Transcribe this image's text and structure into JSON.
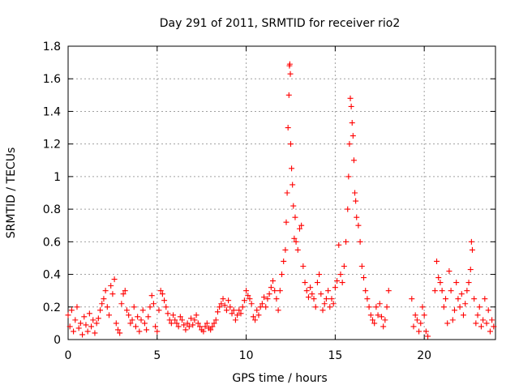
{
  "chart_data": {
    "type": "scatter",
    "title": "Day 291 of 2011, SRMTID for receiver rio2",
    "xlabel": "GPS time / hours",
    "ylabel": "SRMTID / TECUs",
    "xlim": [
      0,
      24
    ],
    "ylim": [
      0,
      1.8
    ],
    "x_ticks": [
      0,
      5,
      10,
      15,
      20
    ],
    "x_tick_labels": [
      "0",
      "5",
      "10",
      "15",
      "20"
    ],
    "y_ticks": [
      0,
      0.2,
      0.4,
      0.6,
      0.8,
      1.0,
      1.2,
      1.4,
      1.6,
      1.8
    ],
    "y_tick_labels": [
      "0",
      "0.2",
      "0.4",
      "0.6",
      "0.8",
      "1",
      "1.2",
      "1.4",
      "1.6",
      "1.8"
    ],
    "grid": true,
    "marker": "plus",
    "color": "#ff0000",
    "series": [
      {
        "name": "rio2",
        "points": [
          [
            0.0,
            0.15
          ],
          [
            0.1,
            0.08
          ],
          [
            0.2,
            0.18
          ],
          [
            0.3,
            0.05
          ],
          [
            0.4,
            0.12
          ],
          [
            0.5,
            0.2
          ],
          [
            0.6,
            0.07
          ],
          [
            0.7,
            0.1
          ],
          [
            0.8,
            0.03
          ],
          [
            0.9,
            0.14
          ],
          [
            1.0,
            0.09
          ],
          [
            1.1,
            0.05
          ],
          [
            1.2,
            0.16
          ],
          [
            1.3,
            0.08
          ],
          [
            1.4,
            0.12
          ],
          [
            1.5,
            0.04
          ],
          [
            1.6,
            0.1
          ],
          [
            1.7,
            0.13
          ],
          [
            1.8,
            0.18
          ],
          [
            1.9,
            0.22
          ],
          [
            2.0,
            0.25
          ],
          [
            2.1,
            0.3
          ],
          [
            2.2,
            0.2
          ],
          [
            2.3,
            0.15
          ],
          [
            2.4,
            0.33
          ],
          [
            2.5,
            0.28
          ],
          [
            2.6,
            0.37
          ],
          [
            2.7,
            0.1
          ],
          [
            2.8,
            0.06
          ],
          [
            2.9,
            0.04
          ],
          [
            3.0,
            0.22
          ],
          [
            3.1,
            0.28
          ],
          [
            3.2,
            0.3
          ],
          [
            3.3,
            0.18
          ],
          [
            3.4,
            0.15
          ],
          [
            3.5,
            0.1
          ],
          [
            3.6,
            0.12
          ],
          [
            3.7,
            0.2
          ],
          [
            3.8,
            0.08
          ],
          [
            3.9,
            0.14
          ],
          [
            4.0,
            0.05
          ],
          [
            4.1,
            0.12
          ],
          [
            4.2,
            0.18
          ],
          [
            4.3,
            0.1
          ],
          [
            4.4,
            0.06
          ],
          [
            4.5,
            0.14
          ],
          [
            4.6,
            0.2
          ],
          [
            4.7,
            0.27
          ],
          [
            4.8,
            0.22
          ],
          [
            4.9,
            0.08
          ],
          [
            5.0,
            0.05
          ],
          [
            5.1,
            0.18
          ],
          [
            5.2,
            0.3
          ],
          [
            5.3,
            0.28
          ],
          [
            5.4,
            0.24
          ],
          [
            5.5,
            0.2
          ],
          [
            5.6,
            0.16
          ],
          [
            5.7,
            0.12
          ],
          [
            5.8,
            0.1
          ],
          [
            5.9,
            0.15
          ],
          [
            6.0,
            0.12
          ],
          [
            6.1,
            0.1
          ],
          [
            6.2,
            0.08
          ],
          [
            6.3,
            0.14
          ],
          [
            6.4,
            0.12
          ],
          [
            6.5,
            0.09
          ],
          [
            6.6,
            0.06
          ],
          [
            6.7,
            0.1
          ],
          [
            6.8,
            0.08
          ],
          [
            6.9,
            0.13
          ],
          [
            7.0,
            0.09
          ],
          [
            7.1,
            0.12
          ],
          [
            7.2,
            0.15
          ],
          [
            7.3,
            0.1
          ],
          [
            7.4,
            0.08
          ],
          [
            7.5,
            0.06
          ],
          [
            7.6,
            0.05
          ],
          [
            7.7,
            0.08
          ],
          [
            7.8,
            0.1
          ],
          [
            7.9,
            0.07
          ],
          [
            8.0,
            0.06
          ],
          [
            8.1,
            0.08
          ],
          [
            8.2,
            0.1
          ],
          [
            8.3,
            0.12
          ],
          [
            8.4,
            0.17
          ],
          [
            8.5,
            0.2
          ],
          [
            8.6,
            0.22
          ],
          [
            8.7,
            0.25
          ],
          [
            8.8,
            0.21
          ],
          [
            8.9,
            0.18
          ],
          [
            9.0,
            0.24
          ],
          [
            9.1,
            0.2
          ],
          [
            9.2,
            0.16
          ],
          [
            9.3,
            0.18
          ],
          [
            9.4,
            0.12
          ],
          [
            9.5,
            0.15
          ],
          [
            9.6,
            0.18
          ],
          [
            9.7,
            0.16
          ],
          [
            9.8,
            0.2
          ],
          [
            9.9,
            0.24
          ],
          [
            10.0,
            0.3
          ],
          [
            10.1,
            0.27
          ],
          [
            10.2,
            0.25
          ],
          [
            10.3,
            0.22
          ],
          [
            10.4,
            0.14
          ],
          [
            10.5,
            0.12
          ],
          [
            10.6,
            0.18
          ],
          [
            10.7,
            0.15
          ],
          [
            10.8,
            0.2
          ],
          [
            10.9,
            0.22
          ],
          [
            11.0,
            0.26
          ],
          [
            11.1,
            0.2
          ],
          [
            11.2,
            0.25
          ],
          [
            11.3,
            0.28
          ],
          [
            11.4,
            0.32
          ],
          [
            11.5,
            0.36
          ],
          [
            11.6,
            0.3
          ],
          [
            11.7,
            0.25
          ],
          [
            11.8,
            0.18
          ],
          [
            11.9,
            0.3
          ],
          [
            12.0,
            0.4
          ],
          [
            12.1,
            0.48
          ],
          [
            12.2,
            0.55
          ],
          [
            12.25,
            0.72
          ],
          [
            12.3,
            0.9
          ],
          [
            12.35,
            1.3
          ],
          [
            12.4,
            1.5
          ],
          [
            12.43,
            1.68
          ],
          [
            12.45,
            1.69
          ],
          [
            12.48,
            1.63
          ],
          [
            12.5,
            1.2
          ],
          [
            12.55,
            1.05
          ],
          [
            12.6,
            0.95
          ],
          [
            12.65,
            0.82
          ],
          [
            12.7,
            0.62
          ],
          [
            12.75,
            0.75
          ],
          [
            12.8,
            0.6
          ],
          [
            12.9,
            0.55
          ],
          [
            13.0,
            0.68
          ],
          [
            13.1,
            0.7
          ],
          [
            13.2,
            0.45
          ],
          [
            13.3,
            0.35
          ],
          [
            13.4,
            0.3
          ],
          [
            13.5,
            0.26
          ],
          [
            13.6,
            0.32
          ],
          [
            13.7,
            0.28
          ],
          [
            13.8,
            0.25
          ],
          [
            13.9,
            0.2
          ],
          [
            14.0,
            0.35
          ],
          [
            14.1,
            0.4
          ],
          [
            14.2,
            0.28
          ],
          [
            14.3,
            0.18
          ],
          [
            14.4,
            0.22
          ],
          [
            14.5,
            0.25
          ],
          [
            14.6,
            0.3
          ],
          [
            14.7,
            0.2
          ],
          [
            14.8,
            0.25
          ],
          [
            14.9,
            0.22
          ],
          [
            15.0,
            0.32
          ],
          [
            15.1,
            0.36
          ],
          [
            15.2,
            0.58
          ],
          [
            15.3,
            0.4
          ],
          [
            15.4,
            0.35
          ],
          [
            15.5,
            0.45
          ],
          [
            15.6,
            0.6
          ],
          [
            15.7,
            0.8
          ],
          [
            15.75,
            1.0
          ],
          [
            15.8,
            1.2
          ],
          [
            15.85,
            1.48
          ],
          [
            15.9,
            1.43
          ],
          [
            15.95,
            1.33
          ],
          [
            16.0,
            1.25
          ],
          [
            16.05,
            1.1
          ],
          [
            16.1,
            0.9
          ],
          [
            16.15,
            0.85
          ],
          [
            16.2,
            0.75
          ],
          [
            16.3,
            0.7
          ],
          [
            16.4,
            0.6
          ],
          [
            16.5,
            0.45
          ],
          [
            16.6,
            0.38
          ],
          [
            16.7,
            0.3
          ],
          [
            16.8,
            0.25
          ],
          [
            16.9,
            0.2
          ],
          [
            17.0,
            0.15
          ],
          [
            17.1,
            0.12
          ],
          [
            17.2,
            0.1
          ],
          [
            17.3,
            0.2
          ],
          [
            17.4,
            0.15
          ],
          [
            17.5,
            0.22
          ],
          [
            17.6,
            0.14
          ],
          [
            17.7,
            0.08
          ],
          [
            17.8,
            0.12
          ],
          [
            17.9,
            0.2
          ],
          [
            18.0,
            0.3
          ],
          [
            19.3,
            0.25
          ],
          [
            19.4,
            0.08
          ],
          [
            19.5,
            0.15
          ],
          [
            19.6,
            0.12
          ],
          [
            19.7,
            0.05
          ],
          [
            19.8,
            0.1
          ],
          [
            19.9,
            0.2
          ],
          [
            20.0,
            0.15
          ],
          [
            20.1,
            0.05
          ],
          [
            20.2,
            0.02
          ],
          [
            20.6,
            0.3
          ],
          [
            20.7,
            0.48
          ],
          [
            20.8,
            0.38
          ],
          [
            20.9,
            0.35
          ],
          [
            21.0,
            0.3
          ],
          [
            21.1,
            0.2
          ],
          [
            21.2,
            0.25
          ],
          [
            21.3,
            0.1
          ],
          [
            21.4,
            0.42
          ],
          [
            21.5,
            0.3
          ],
          [
            21.6,
            0.12
          ],
          [
            21.7,
            0.18
          ],
          [
            21.8,
            0.35
          ],
          [
            21.9,
            0.25
          ],
          [
            22.0,
            0.2
          ],
          [
            22.1,
            0.28
          ],
          [
            22.2,
            0.15
          ],
          [
            22.3,
            0.22
          ],
          [
            22.4,
            0.3
          ],
          [
            22.5,
            0.35
          ],
          [
            22.6,
            0.43
          ],
          [
            22.65,
            0.6
          ],
          [
            22.7,
            0.55
          ],
          [
            22.8,
            0.25
          ],
          [
            22.9,
            0.1
          ],
          [
            23.0,
            0.15
          ],
          [
            23.1,
            0.2
          ],
          [
            23.2,
            0.08
          ],
          [
            23.3,
            0.12
          ],
          [
            23.4,
            0.25
          ],
          [
            23.5,
            0.1
          ],
          [
            23.6,
            0.18
          ],
          [
            23.7,
            0.05
          ],
          [
            23.8,
            0.12
          ],
          [
            23.9,
            0.08
          ]
        ]
      }
    ]
  }
}
